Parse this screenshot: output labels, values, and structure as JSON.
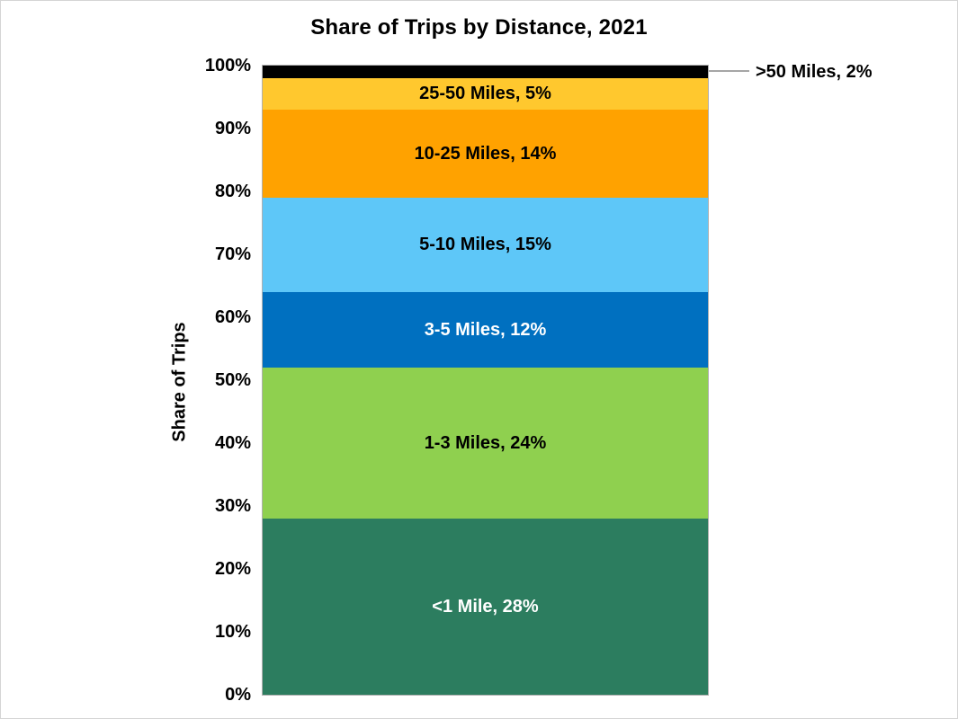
{
  "page": {
    "background": "#FFFFFF",
    "border_color": "#D5D5D5"
  },
  "chart_data": {
    "type": "bar",
    "variant": "stacked-column-100pct",
    "title": "Share of Trips by Distance, 2021",
    "xlabel": "",
    "ylabel": "Share of Trips",
    "ylim": [
      0,
      100
    ],
    "grid": false,
    "legend": "none",
    "ytick_labels": [
      "0%",
      "10%",
      "20%",
      "30%",
      "40%",
      "50%",
      "60%",
      "70%",
      "80%",
      "90%",
      "100%"
    ],
    "segments": [
      {
        "label": "<1 Mile",
        "value": 28,
        "display": "<1 Mile, 28%",
        "color": "#2C7D5F",
        "text_color": "#FFFFFF",
        "label_position": "inside"
      },
      {
        "label": "1-3 Miles",
        "value": 24,
        "display": "1-3 Miles, 24%",
        "color": "#8FD04F",
        "text_color": "#000000",
        "label_position": "inside"
      },
      {
        "label": "3-5 Miles",
        "value": 12,
        "display": "3-5 Miles, 12%",
        "color": "#0070C0",
        "text_color": "#FFFFFF",
        "label_position": "inside"
      },
      {
        "label": "5-10 Miles",
        "value": 15,
        "display": "5-10 Miles, 15%",
        "color": "#5EC7F8",
        "text_color": "#000000",
        "label_position": "inside"
      },
      {
        "label": "10-25 Miles",
        "value": 14,
        "display": "10-25 Miles, 14%",
        "color": "#FFA200",
        "text_color": "#000000",
        "label_position": "inside"
      },
      {
        "label": "25-50 Miles",
        "value": 5,
        "display": "25-50 Miles, 5%",
        "color": "#FFC82E",
        "text_color": "#000000",
        "label_position": "inside"
      },
      {
        "label": ">50 Miles",
        "value": 2,
        "display": ">50 Miles, 2%",
        "color": "#000000",
        "text_color": "#000000",
        "label_position": "outside-right"
      }
    ],
    "callout": {
      "text": ">50 Miles, 2%",
      "target_segment": ">50 Miles",
      "line_color": "#A6A6A6",
      "text_color": "#000000"
    }
  }
}
